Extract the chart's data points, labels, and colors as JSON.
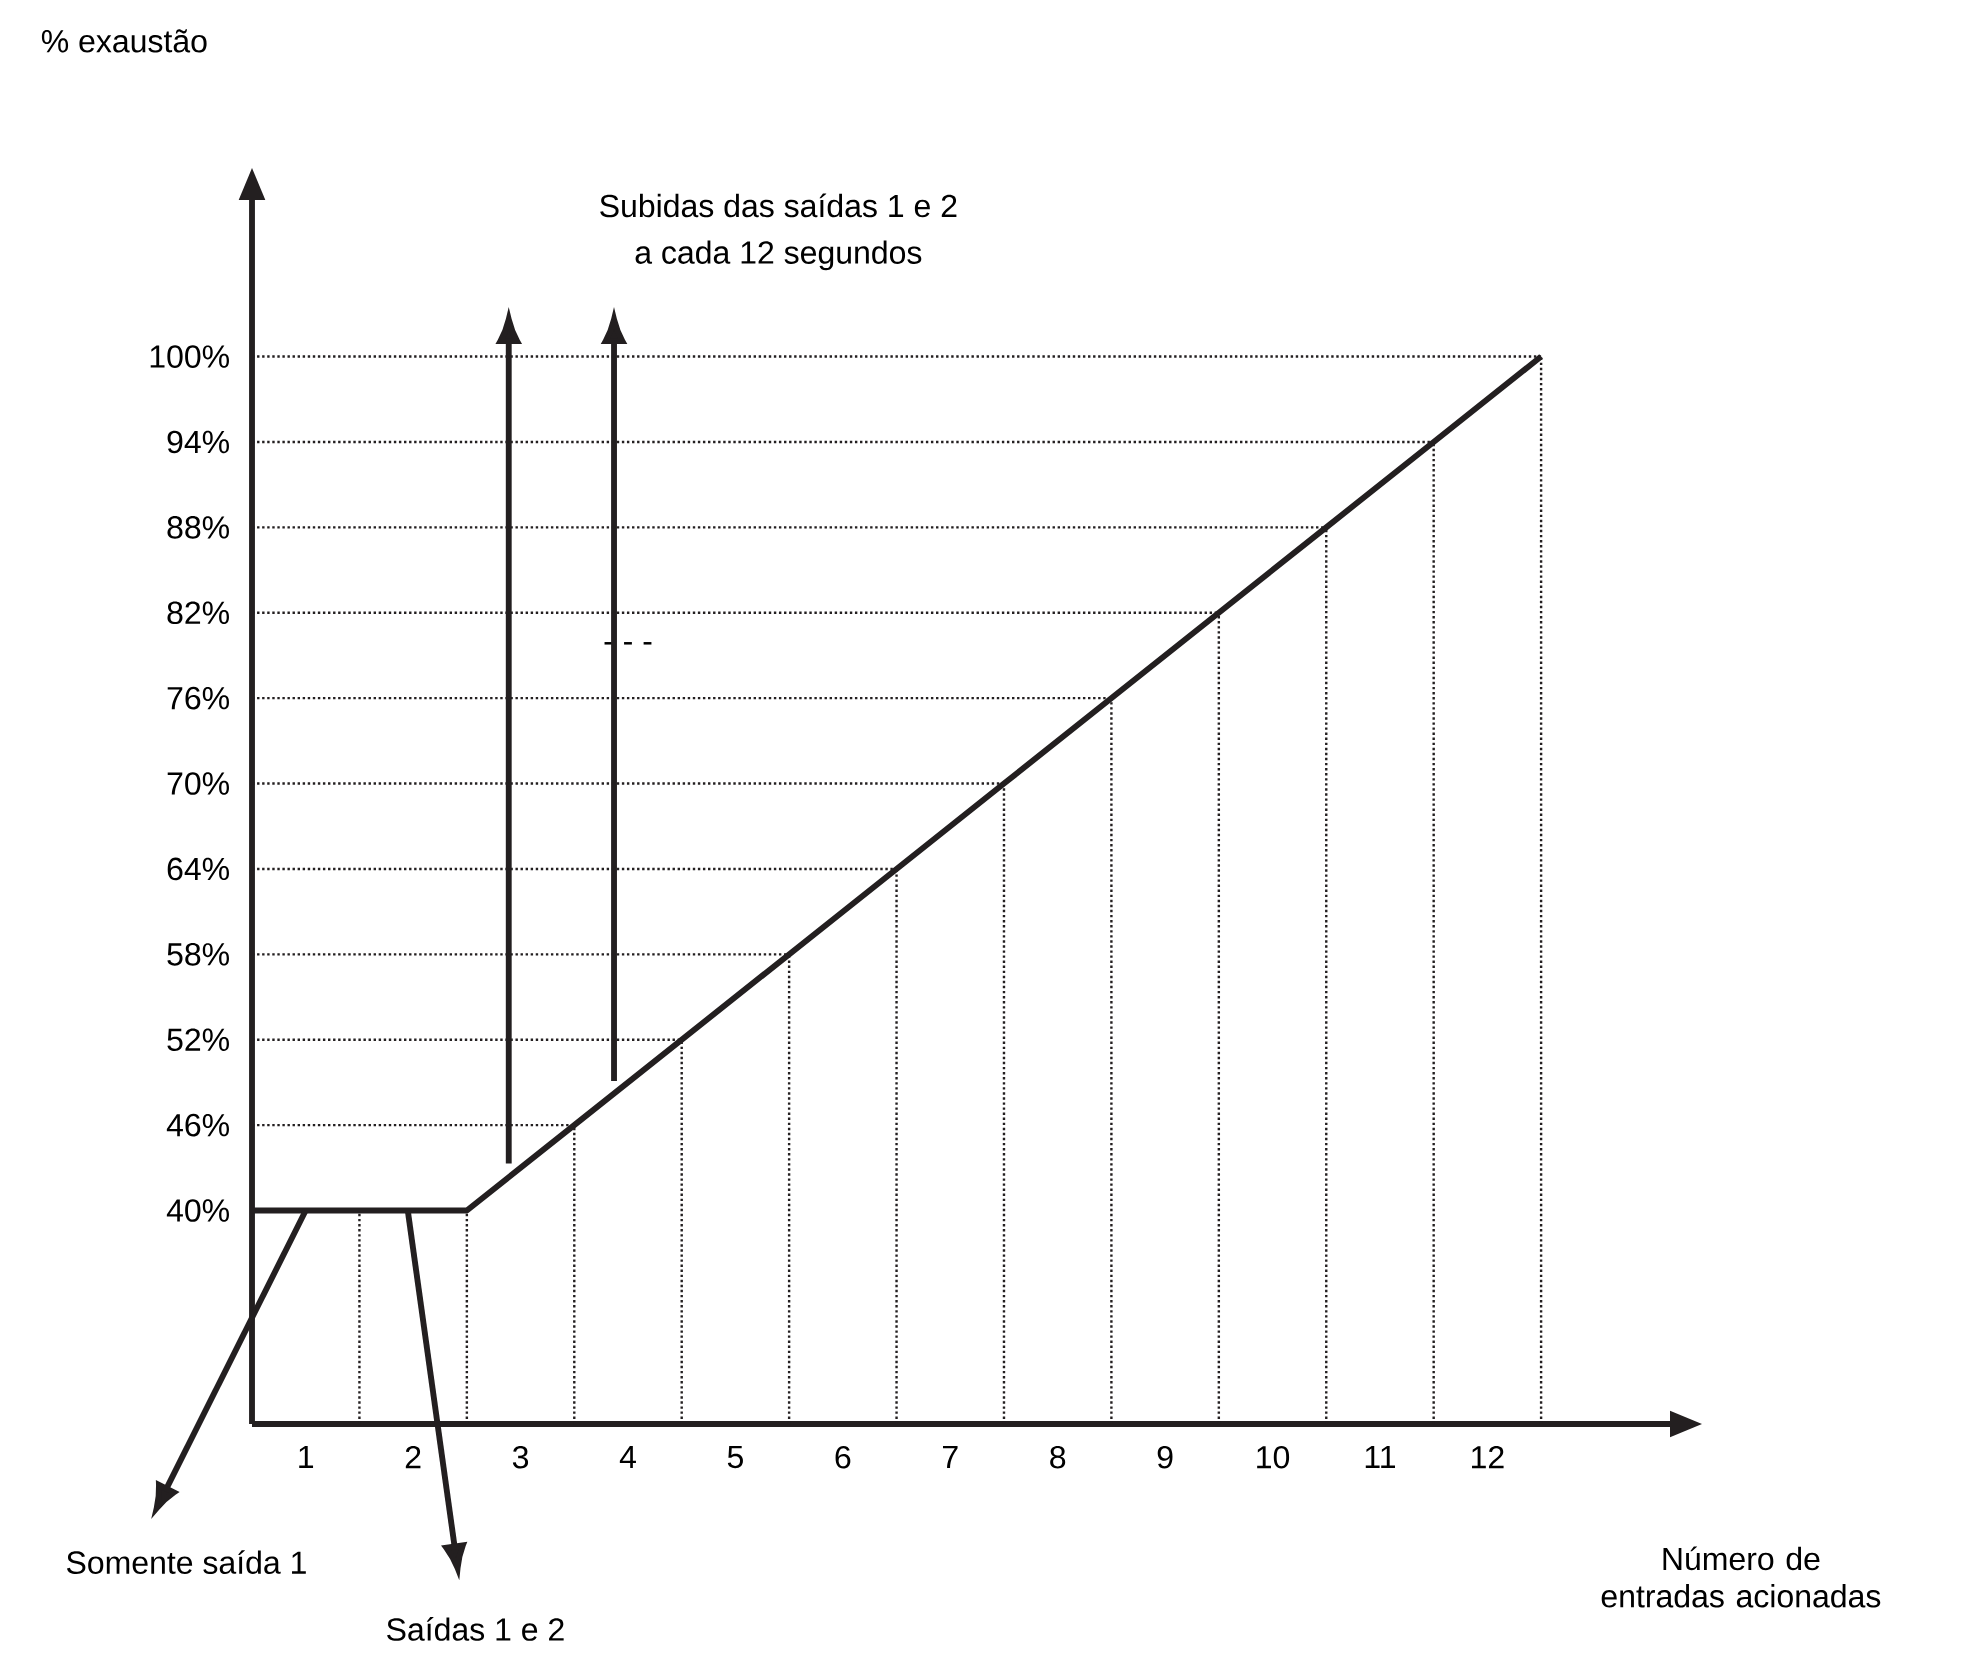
{
  "chart_data": {
    "type": "line",
    "xlabel": "Número de entradas acionadas",
    "ylabel": "% exaustão",
    "x": [
      0.5,
      1.5,
      2.5,
      3.5,
      4.5,
      5.5,
      6.5,
      7.5,
      8.5,
      9.5,
      10.5,
      11.5,
      12.5
    ],
    "values": [
      40,
      40,
      40,
      46,
      52,
      58,
      64,
      70,
      76,
      82,
      88,
      94,
      100
    ],
    "color": "#231f20",
    "xlim": [
      0.5,
      13.7
    ],
    "ylim": [
      25,
      111
    ],
    "xticks": [
      1,
      2,
      3,
      4,
      5,
      6,
      7,
      8,
      9,
      10,
      11,
      12
    ],
    "yticks": [
      {
        "value": 40,
        "label": "40%"
      },
      {
        "value": 46,
        "label": "46%"
      },
      {
        "value": 52,
        "label": "52%"
      },
      {
        "value": 58,
        "label": "58%"
      },
      {
        "value": 64,
        "label": "64%"
      },
      {
        "value": 70,
        "label": "70%"
      },
      {
        "value": 76,
        "label": "76%"
      },
      {
        "value": 82,
        "label": "82%"
      },
      {
        "value": 88,
        "label": "88%"
      },
      {
        "value": 94,
        "label": "94%"
      },
      {
        "value": 100,
        "label": "100%"
      }
    ],
    "annotations": [
      "Subidas das saídas 1 e 2",
      "a cada 12 segundos",
      "- - -",
      "Somente saída 1",
      "Saídas 1 e 2"
    ],
    "ref_lines": [
      {
        "axis": "y",
        "value": 46,
        "line_style": "dotted"
      },
      {
        "axis": "y",
        "value": 52,
        "line_style": "dotted"
      },
      {
        "axis": "y",
        "value": 58,
        "line_style": "dotted"
      },
      {
        "axis": "y",
        "value": 64,
        "line_style": "dotted"
      },
      {
        "axis": "y",
        "value": 70,
        "line_style": "dotted"
      },
      {
        "axis": "y",
        "value": 76,
        "line_style": "dotted"
      },
      {
        "axis": "y",
        "value": 82,
        "line_style": "dotted"
      },
      {
        "axis": "y",
        "value": 88,
        "line_style": "dotted"
      },
      {
        "axis": "y",
        "value": 94,
        "line_style": "dotted"
      },
      {
        "axis": "y",
        "value": 100,
        "line_style": "dotted"
      },
      {
        "axis": "x",
        "value": 1.5,
        "line_style": "dotted"
      },
      {
        "axis": "x",
        "value": 2.5,
        "line_style": "dotted"
      },
      {
        "axis": "x",
        "value": 3.5,
        "line_style": "dotted"
      },
      {
        "axis": "x",
        "value": 4.5,
        "line_style": "dotted"
      },
      {
        "axis": "x",
        "value": 5.5,
        "line_style": "dotted"
      },
      {
        "axis": "x",
        "value": 6.5,
        "line_style": "dotted"
      },
      {
        "axis": "x",
        "value": 7.5,
        "line_style": "dotted"
      },
      {
        "axis": "x",
        "value": 8.5,
        "line_style": "dotted"
      },
      {
        "axis": "x",
        "value": 9.5,
        "line_style": "dotted"
      },
      {
        "axis": "x",
        "value": 10.5,
        "line_style": "dotted"
      },
      {
        "axis": "x",
        "value": 11.5,
        "line_style": "dotted"
      },
      {
        "axis": "x",
        "value": 12.5,
        "line_style": "dotted"
      }
    ],
    "marker": "none",
    "line_style": "solid"
  }
}
